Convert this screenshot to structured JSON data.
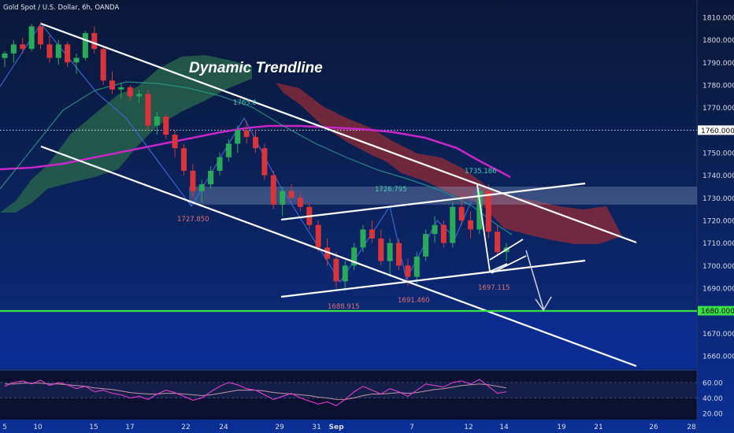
{
  "header": {
    "title": "Gold Spot / U.S. Dollar, 6h, OANDA"
  },
  "colors": {
    "background_top": "#0a1a40",
    "background_bottom": "#0a2c8a",
    "candle_up": "#2aa95a",
    "candle_down": "#d8343a",
    "trendline": "#ffffff",
    "support_line": "#38e048",
    "ma_line": "#c826c8",
    "cloud_green": "#2a6a4a",
    "cloud_red": "#8a2a38",
    "zigzag": "#3a6adf",
    "arrow": "#c8c8d8",
    "rsi_line": "#e23ccf",
    "rsi_signal": "#d8a0a8"
  },
  "chart_data": {
    "type": "candlestick",
    "title": "Dynamic Trendline",
    "price_axis": {
      "ticks": [
        "1810.000",
        "1800.000",
        "1790.000",
        "1780.000",
        "1770.000",
        "1760.000",
        "1750.000",
        "1740.000",
        "1730.000",
        "1720.000",
        "1710.000",
        "1700.000",
        "1690.000",
        "1680.000",
        "1670.000",
        "1660.000"
      ],
      "range": [
        1655,
        1815
      ],
      "marked_prices": [
        {
          "label": "1760.000",
          "style": "white"
        },
        {
          "label": "1680.000",
          "style": "green"
        }
      ]
    },
    "time_axis": {
      "ticks": [
        "5",
        "10",
        "15",
        "17",
        "22",
        "24",
        "29",
        "31",
        "Sep",
        "7",
        "12",
        "14",
        "19",
        "21",
        "26",
        "28"
      ]
    },
    "price_labels": [
      {
        "text": "1727.850"
      },
      {
        "text": "1688.915"
      },
      {
        "text": "1691.460"
      },
      {
        "text": "1697.115"
      },
      {
        "text": "1735.186"
      },
      {
        "text": "1726.795"
      },
      {
        "text": "1765.0"
      }
    ],
    "rsi": {
      "ticks": [
        "60.00",
        "40.00",
        "20.00"
      ],
      "range": [
        15,
        70
      ]
    },
    "candles": [
      [
        1792,
        1795,
        1788,
        1794
      ],
      [
        1794,
        1800,
        1790,
        1798
      ],
      [
        1798,
        1801,
        1794,
        1796
      ],
      [
        1796,
        1807,
        1795,
        1806
      ],
      [
        1806,
        1808,
        1796,
        1798
      ],
      [
        1798,
        1802,
        1790,
        1792
      ],
      [
        1792,
        1800,
        1789,
        1798
      ],
      [
        1798,
        1799,
        1788,
        1790
      ],
      [
        1790,
        1794,
        1785,
        1792
      ],
      [
        1792,
        1804,
        1791,
        1803
      ],
      [
        1803,
        1806,
        1794,
        1796
      ],
      [
        1796,
        1797,
        1780,
        1782
      ],
      [
        1782,
        1786,
        1776,
        1778
      ],
      [
        1778,
        1781,
        1774,
        1779
      ],
      [
        1779,
        1780,
        1773,
        1775
      ],
      [
        1775,
        1778,
        1772,
        1776
      ],
      [
        1776,
        1778,
        1760,
        1762
      ],
      [
        1762,
        1768,
        1758,
        1766
      ],
      [
        1766,
        1767,
        1756,
        1758
      ],
      [
        1758,
        1760,
        1748,
        1752
      ],
      [
        1752,
        1754,
        1740,
        1742
      ],
      [
        1742,
        1745,
        1730,
        1733
      ],
      [
        1733,
        1738,
        1728,
        1736
      ],
      [
        1736,
        1744,
        1734,
        1742
      ],
      [
        1742,
        1750,
        1740,
        1748
      ],
      [
        1748,
        1756,
        1746,
        1754
      ],
      [
        1754,
        1762,
        1750,
        1760
      ],
      [
        1760,
        1764,
        1754,
        1757
      ],
      [
        1757,
        1760,
        1750,
        1752
      ],
      [
        1752,
        1754,
        1738,
        1740
      ],
      [
        1740,
        1742,
        1725,
        1727
      ],
      [
        1727,
        1735,
        1722,
        1733
      ],
      [
        1733,
        1736,
        1728,
        1730
      ],
      [
        1730,
        1732,
        1724,
        1726
      ],
      [
        1726,
        1728,
        1716,
        1718
      ],
      [
        1718,
        1720,
        1706,
        1708
      ],
      [
        1708,
        1712,
        1700,
        1703
      ],
      [
        1703,
        1706,
        1690,
        1693
      ],
      [
        1693,
        1702,
        1689,
        1700
      ],
      [
        1700,
        1710,
        1698,
        1708
      ],
      [
        1708,
        1718,
        1706,
        1716
      ],
      [
        1716,
        1720,
        1710,
        1712
      ],
      [
        1712,
        1716,
        1700,
        1702
      ],
      [
        1702,
        1712,
        1695,
        1710
      ],
      [
        1710,
        1712,
        1698,
        1700
      ],
      [
        1700,
        1703,
        1691,
        1695
      ],
      [
        1695,
        1706,
        1692,
        1704
      ],
      [
        1704,
        1716,
        1702,
        1714
      ],
      [
        1714,
        1722,
        1710,
        1718
      ],
      [
        1718,
        1720,
        1708,
        1710
      ],
      [
        1710,
        1728,
        1708,
        1726
      ],
      [
        1726,
        1732,
        1718,
        1720
      ],
      [
        1720,
        1724,
        1712,
        1716
      ],
      [
        1716,
        1735,
        1714,
        1733
      ],
      [
        1733,
        1736,
        1712,
        1715
      ],
      [
        1715,
        1718,
        1704,
        1706
      ],
      [
        1706,
        1710,
        1702,
        1708
      ]
    ]
  }
}
